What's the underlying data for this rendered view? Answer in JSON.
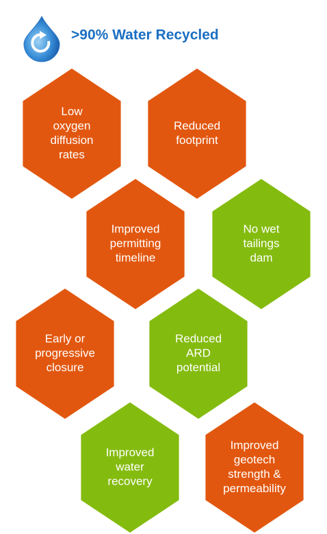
{
  "title": ">90% Water Recycled",
  "hexagons": [
    {
      "lines": [
        "Low",
        "oxygen",
        "diffusion",
        "rates"
      ],
      "color": "#e2570f",
      "center": null
    },
    {
      "lines": [
        "Reduced",
        "footprint"
      ],
      "color": "#e2570f"
    },
    {
      "lines": [
        "Improved",
        "permitting",
        "timeline"
      ],
      "color": "#e2570f"
    },
    {
      "lines": [
        "No wet",
        "tailings",
        "dam"
      ],
      "color": "#84bb0f"
    },
    {
      "lines": [
        "Early or",
        "progressive",
        "closure"
      ],
      "color": "#e2570f"
    },
    {
      "lines": [
        "Reduced",
        "ARD",
        "potential"
      ],
      "color": "#84bb0f"
    },
    {
      "lines": [
        "Improved",
        "water",
        "recovery"
      ],
      "color": "#84bb0f"
    },
    {
      "lines": [
        "Improved",
        "geotech",
        "strength &",
        "permeability"
      ],
      "color": "#e2570f"
    }
  ]
}
